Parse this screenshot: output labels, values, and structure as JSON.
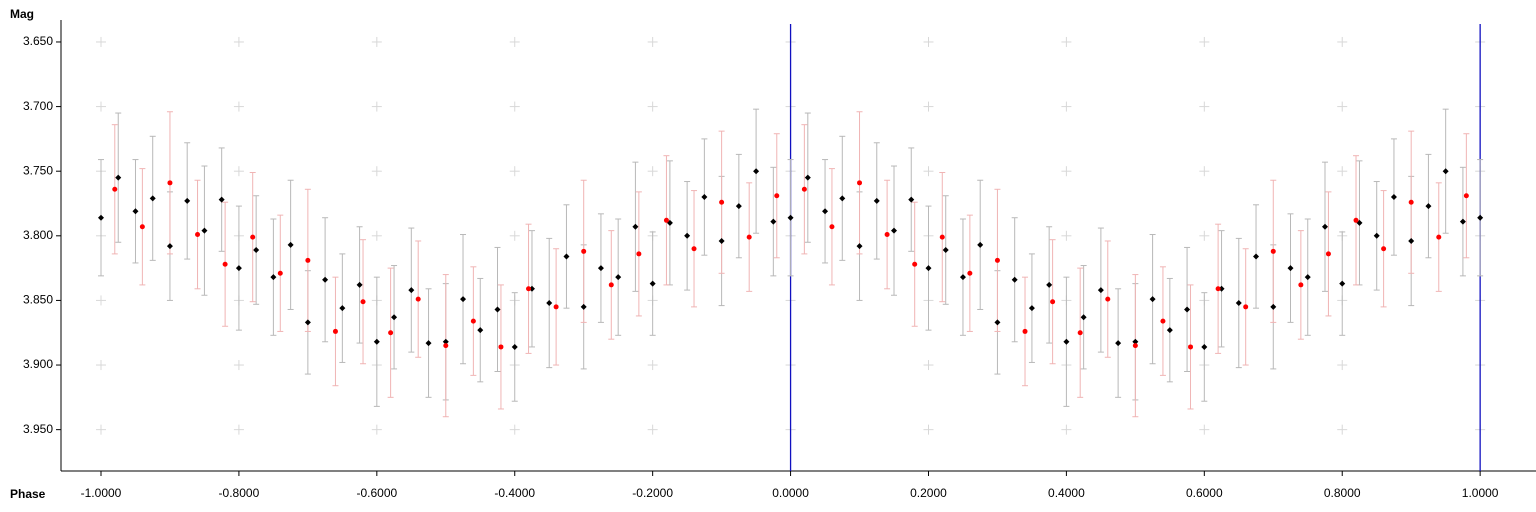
{
  "chart_data": {
    "type": "scatter",
    "x_label": "Phase",
    "y_label": "Mag",
    "xlim": [
      -1.058,
      1.081
    ],
    "ylim": [
      3.633,
      3.982
    ],
    "y_inverted": true,
    "xticks": [
      {
        "value": -1,
        "label": "-1.0000"
      },
      {
        "value": -0.8,
        "label": "-0.8000"
      },
      {
        "value": -0.6,
        "label": "-0.6000"
      },
      {
        "value": -0.4,
        "label": "-0.4000"
      },
      {
        "value": -0.2,
        "label": "-0.2000"
      },
      {
        "value": 0,
        "label": "0.0000"
      },
      {
        "value": 0.2,
        "label": "0.2000"
      },
      {
        "value": 0.4,
        "label": "0.4000"
      },
      {
        "value": 0.6,
        "label": "0.6000"
      },
      {
        "value": 0.8,
        "label": "0.8000"
      },
      {
        "value": 1,
        "label": "1.0000"
      }
    ],
    "yticks": [
      {
        "value": 3.65,
        "label": "3.650"
      },
      {
        "value": 3.7,
        "label": "3.700"
      },
      {
        "value": 3.75,
        "label": "3.750"
      },
      {
        "value": 3.8,
        "label": "3.800"
      },
      {
        "value": 3.85,
        "label": "3.850"
      },
      {
        "value": 3.9,
        "label": "3.900"
      },
      {
        "value": 3.95,
        "label": "3.950"
      }
    ],
    "grid": true,
    "vlines": [
      0,
      1
    ],
    "vline_color": "#1010c0",
    "series": [
      {
        "color": "#000000",
        "error_color": "#b8b8b8",
        "marker": "diamond",
        "x": [
          -1,
          -0.975,
          -0.95,
          -0.925,
          -0.9,
          -0.875,
          -0.85,
          -0.825,
          -0.8,
          -0.775,
          -0.75,
          -0.725,
          -0.7,
          -0.675,
          -0.65,
          -0.625,
          -0.6,
          -0.575,
          -0.55,
          -0.525,
          -0.5,
          -0.475,
          -0.45,
          -0.425,
          -0.4,
          -0.375,
          -0.35,
          -0.325,
          -0.3,
          -0.275,
          -0.25,
          -0.225,
          -0.2,
          -0.175,
          -0.15,
          -0.125,
          -0.1,
          -0.075,
          -0.05,
          -0.025,
          0,
          0.025,
          0.05,
          0.075,
          0.1,
          0.125,
          0.15,
          0.175,
          0.2,
          0.225,
          0.25,
          0.275,
          0.3,
          0.325,
          0.35,
          0.375,
          0.4,
          0.425,
          0.45,
          0.475,
          0.5,
          0.525,
          0.55,
          0.575,
          0.6,
          0.625,
          0.65,
          0.675,
          0.7,
          0.725,
          0.75,
          0.775,
          0.8,
          0.825,
          0.85,
          0.875,
          0.9,
          0.925,
          0.95,
          0.975,
          1
        ],
        "values": [
          3.786,
          3.755,
          3.781,
          3.771,
          3.808,
          3.773,
          3.796,
          3.772,
          3.825,
          3.811,
          3.832,
          3.807,
          3.867,
          3.834,
          3.856,
          3.838,
          3.882,
          3.863,
          3.842,
          3.883,
          3.882,
          3.849,
          3.873,
          3.857,
          3.886,
          3.841,
          3.852,
          3.816,
          3.855,
          3.825,
          3.832,
          3.793,
          3.837,
          3.79,
          3.8,
          3.77,
          3.804,
          3.777,
          3.75,
          3.789,
          3.786,
          3.755,
          3.781,
          3.771,
          3.808,
          3.773,
          3.796,
          3.772,
          3.825,
          3.811,
          3.832,
          3.807,
          3.867,
          3.834,
          3.856,
          3.838,
          3.882,
          3.863,
          3.842,
          3.883,
          3.882,
          3.849,
          3.873,
          3.857,
          3.886,
          3.841,
          3.852,
          3.816,
          3.855,
          3.825,
          3.832,
          3.793,
          3.837,
          3.79,
          3.8,
          3.77,
          3.804,
          3.777,
          3.75,
          3.789,
          3.786
        ],
        "errors": [
          0.045,
          0.05,
          0.04,
          0.048,
          0.042,
          0.045,
          0.05,
          0.04,
          0.048,
          0.042,
          0.045,
          0.05,
          0.04,
          0.048,
          0.042,
          0.045,
          0.05,
          0.04,
          0.048,
          0.042,
          0.045,
          0.05,
          0.04,
          0.048,
          0.042,
          0.045,
          0.05,
          0.04,
          0.048,
          0.042,
          0.045,
          0.05,
          0.04,
          0.048,
          0.042,
          0.045,
          0.05,
          0.04,
          0.048,
          0.042,
          0.045,
          0.05,
          0.04,
          0.048,
          0.042,
          0.045,
          0.05,
          0.04,
          0.048,
          0.042,
          0.045,
          0.05,
          0.04,
          0.048,
          0.042,
          0.045,
          0.05,
          0.04,
          0.048,
          0.042,
          0.045,
          0.05,
          0.04,
          0.048,
          0.042,
          0.045,
          0.05,
          0.04,
          0.048,
          0.042,
          0.045,
          0.05,
          0.04,
          0.048,
          0.042,
          0.045,
          0.05,
          0.04,
          0.048,
          0.042,
          0.045
        ]
      },
      {
        "color": "#ff0000",
        "error_color": "#f0b4b4",
        "marker": "circle",
        "x": [
          -0.98,
          -0.94,
          -0.9,
          -0.86,
          -0.82,
          -0.78,
          -0.74,
          -0.7,
          -0.66,
          -0.62,
          -0.58,
          -0.54,
          -0.5,
          -0.46,
          -0.42,
          -0.38,
          -0.34,
          -0.3,
          -0.26,
          -0.22,
          -0.18,
          -0.14,
          -0.1,
          -0.06,
          -0.02,
          0.02,
          0.06,
          0.1,
          0.14,
          0.18,
          0.22,
          0.26,
          0.3,
          0.34,
          0.38,
          0.42,
          0.46,
          0.5,
          0.54,
          0.58,
          0.62,
          0.66,
          0.7,
          0.74,
          0.78,
          0.82,
          0.86,
          0.9,
          0.94,
          0.98
        ],
        "values": [
          3.764,
          3.793,
          3.759,
          3.799,
          3.822,
          3.801,
          3.829,
          3.819,
          3.874,
          3.851,
          3.875,
          3.849,
          3.885,
          3.866,
          3.886,
          3.841,
          3.855,
          3.812,
          3.838,
          3.814,
          3.788,
          3.81,
          3.774,
          3.801,
          3.769,
          3.764,
          3.793,
          3.759,
          3.799,
          3.822,
          3.801,
          3.829,
          3.819,
          3.874,
          3.851,
          3.875,
          3.849,
          3.885,
          3.866,
          3.886,
          3.841,
          3.855,
          3.812,
          3.838,
          3.814,
          3.788,
          3.81,
          3.774,
          3.801,
          3.769
        ],
        "errors": [
          0.05,
          0.045,
          0.055,
          0.042,
          0.048,
          0.05,
          0.045,
          0.055,
          0.042,
          0.048,
          0.05,
          0.045,
          0.055,
          0.042,
          0.048,
          0.05,
          0.045,
          0.055,
          0.042,
          0.048,
          0.05,
          0.045,
          0.055,
          0.042,
          0.048,
          0.05,
          0.045,
          0.055,
          0.042,
          0.048,
          0.05,
          0.045,
          0.055,
          0.042,
          0.048,
          0.05,
          0.045,
          0.055,
          0.042,
          0.048,
          0.05,
          0.045,
          0.055,
          0.042,
          0.048,
          0.05,
          0.045,
          0.055,
          0.042,
          0.048
        ]
      }
    ]
  }
}
